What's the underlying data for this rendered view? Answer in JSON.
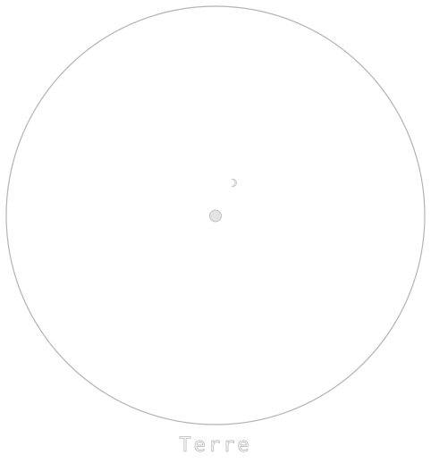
{
  "planet": {
    "name": "Terre"
  },
  "colors": {
    "background": "#ffffff",
    "orbit_stroke": "#b3b3b3",
    "center_fill": "#e3e3e3",
    "center_stroke": "#b5b5b5",
    "moon_fill": "#f0f0f0",
    "moon_stroke": "#c4c4c4",
    "label_stroke": "#b9b9b9"
  }
}
